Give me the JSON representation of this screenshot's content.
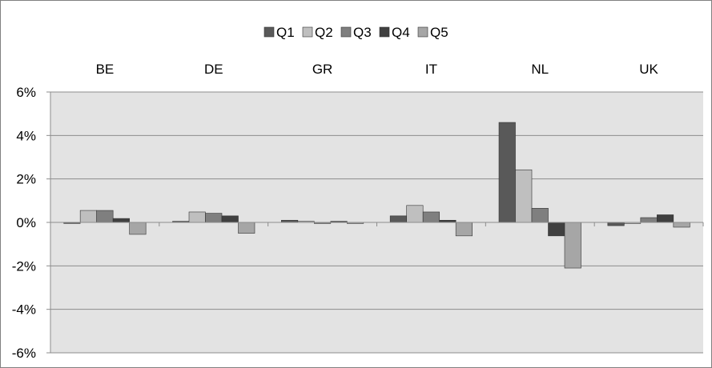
{
  "chart_data": {
    "type": "bar",
    "categories": [
      "BE",
      "DE",
      "GR",
      "IT",
      "NL",
      "UK"
    ],
    "series": [
      {
        "name": "Q1",
        "color": "#595959",
        "values": [
          -0.05,
          0.05,
          0.1,
          0.3,
          4.6,
          -0.15
        ]
      },
      {
        "name": "Q2",
        "color": "#bfbfbf",
        "values": [
          0.55,
          0.48,
          0.05,
          0.78,
          2.42,
          -0.05
        ]
      },
      {
        "name": "Q3",
        "color": "#7f7f7f",
        "values": [
          0.55,
          0.42,
          -0.05,
          0.48,
          0.65,
          0.22
        ]
      },
      {
        "name": "Q4",
        "color": "#404040",
        "values": [
          0.18,
          0.3,
          0.05,
          0.1,
          -0.62,
          0.35
        ]
      },
      {
        "name": "Q5",
        "color": "#a6a6a6",
        "values": [
          -0.55,
          -0.5,
          -0.05,
          -0.62,
          -2.1,
          -0.22
        ]
      }
    ],
    "ylim": [
      -6,
      6
    ],
    "yticks": [
      6,
      4,
      2,
      0,
      -2,
      -4,
      -6
    ],
    "ytick_labels": [
      "6%",
      "4%",
      "2%",
      "0%",
      "-2%",
      "-4%",
      "-6%"
    ],
    "grid": true,
    "legend_position": "top-center",
    "category_labels_position": "top"
  }
}
